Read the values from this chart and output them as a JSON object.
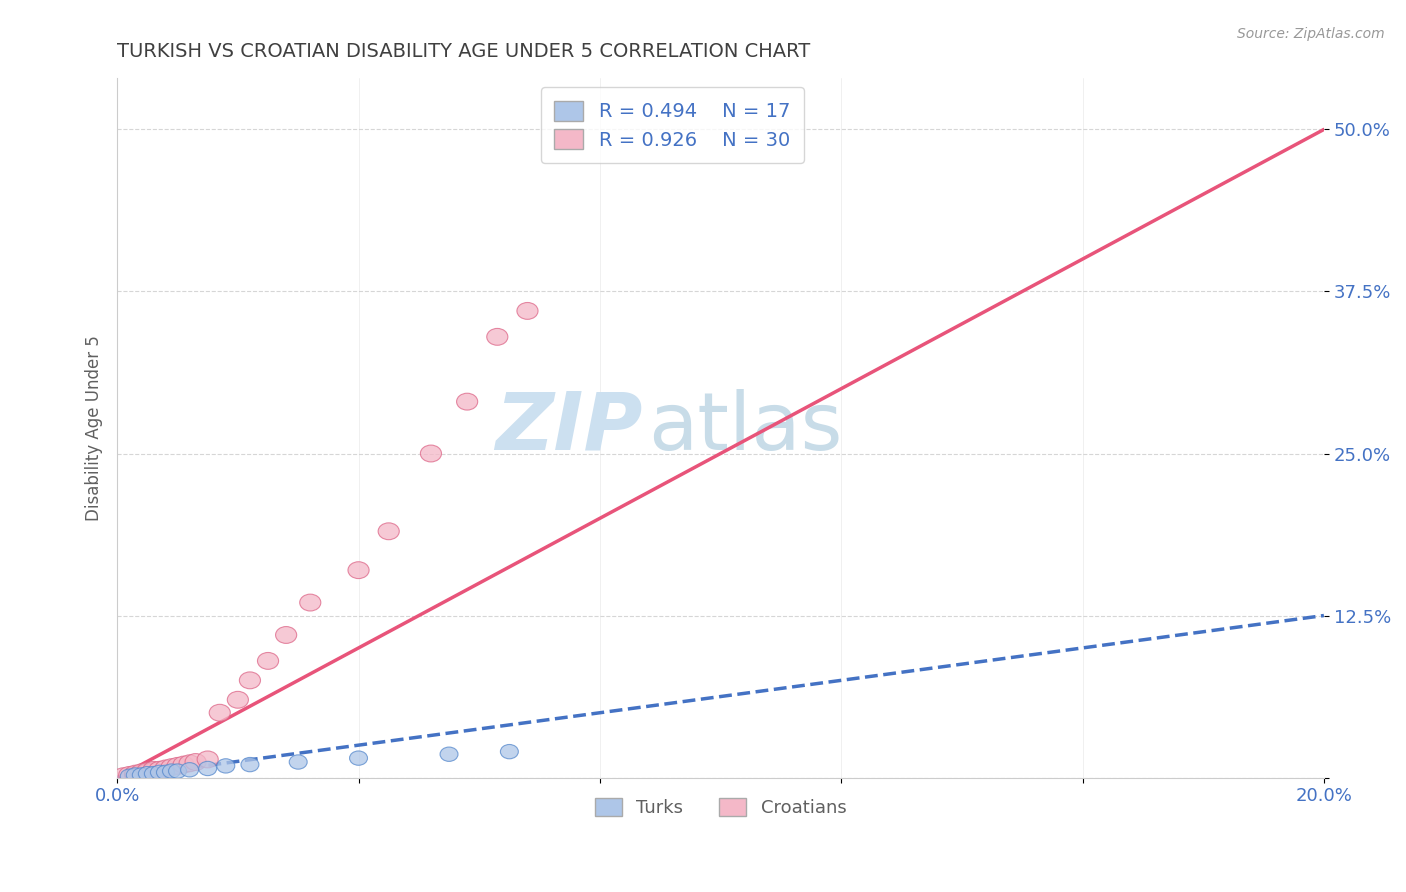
{
  "title": "TURKISH VS CROATIAN DISABILITY AGE UNDER 5 CORRELATION CHART",
  "source_text": "Source: ZipAtlas.com",
  "ylabel": "Disability Age Under 5",
  "xlim": [
    0.0,
    0.2
  ],
  "ylim": [
    0.0,
    0.54
  ],
  "x_ticks": [
    0.0,
    0.04,
    0.08,
    0.12,
    0.16,
    0.2
  ],
  "x_tick_labels_show": [
    "0.0%",
    "20.0%"
  ],
  "y_ticks": [
    0.0,
    0.125,
    0.25,
    0.375,
    0.5
  ],
  "y_tick_labels": [
    "",
    "12.5%",
    "25.0%",
    "37.5%",
    "50.0%"
  ],
  "turks_R": 0.494,
  "turks_N": 17,
  "croatians_R": 0.926,
  "croatians_N": 30,
  "turks_color": "#aec6e8",
  "turks_edge_color": "#5588cc",
  "turks_line_color": "#4472c4",
  "croatians_color": "#f4b8c8",
  "croatians_edge_color": "#dd6688",
  "croatians_line_color": "#e8547a",
  "background_color": "#ffffff",
  "grid_color": "#cccccc",
  "title_color": "#404040",
  "tick_label_color": "#4472c4",
  "watermark_zip_color": "#cce0f0",
  "watermark_atlas_color": "#c8dce8",
  "legend_facecolor": "#ffffff",
  "legend_edgecolor": "#cccccc",
  "turks_x": [
    0.002,
    0.003,
    0.004,
    0.005,
    0.006,
    0.007,
    0.008,
    0.009,
    0.01,
    0.012,
    0.015,
    0.018,
    0.022,
    0.03,
    0.04,
    0.055,
    0.065
  ],
  "turks_y": [
    0.001,
    0.002,
    0.002,
    0.003,
    0.003,
    0.004,
    0.004,
    0.005,
    0.005,
    0.006,
    0.007,
    0.009,
    0.01,
    0.012,
    0.015,
    0.018,
    0.02
  ],
  "croatians_x": [
    0.001,
    0.002,
    0.003,
    0.003,
    0.004,
    0.004,
    0.005,
    0.005,
    0.006,
    0.006,
    0.007,
    0.008,
    0.009,
    0.01,
    0.011,
    0.012,
    0.013,
    0.015,
    0.017,
    0.02,
    0.022,
    0.025,
    0.028,
    0.032,
    0.04,
    0.045,
    0.052,
    0.058,
    0.063,
    0.068
  ],
  "croatians_y": [
    0.001,
    0.002,
    0.002,
    0.003,
    0.003,
    0.004,
    0.004,
    0.005,
    0.005,
    0.006,
    0.006,
    0.007,
    0.008,
    0.009,
    0.01,
    0.011,
    0.012,
    0.014,
    0.05,
    0.06,
    0.075,
    0.09,
    0.11,
    0.135,
    0.16,
    0.19,
    0.25,
    0.29,
    0.34,
    0.36
  ],
  "cr_line_x0": 0.0,
  "cr_line_y0": 0.0,
  "cr_line_x1": 0.2,
  "cr_line_y1": 0.5,
  "tk_line_x0": 0.0,
  "tk_line_y0": 0.0,
  "tk_line_x1": 0.2,
  "tk_line_y1": 0.125
}
